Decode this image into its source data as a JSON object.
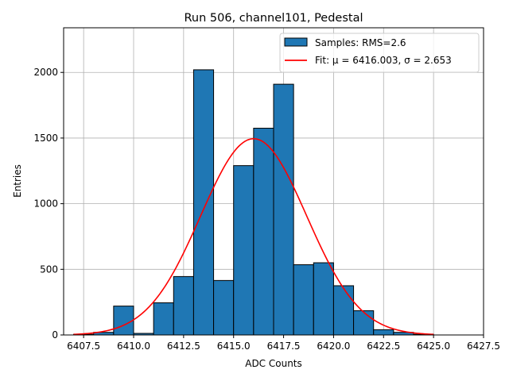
{
  "chart_data": {
    "type": "bar",
    "title": "Run 506, channel101, Pedestal",
    "xlabel": "ADC Counts",
    "ylabel": "Entries",
    "xlim": [
      6406.5,
      6427.5
    ],
    "ylim": [
      0,
      2340
    ],
    "grid": true,
    "legend_position": "top-right",
    "x_ticks": [
      6407.5,
      6410.0,
      6412.5,
      6415.0,
      6417.5,
      6420.0,
      6422.5,
      6425.0,
      6427.5
    ],
    "x_tick_labels": [
      "6407.5",
      "6410.0",
      "6412.5",
      "6415.0",
      "6417.5",
      "6420.0",
      "6422.5",
      "6425.0",
      "6427.5"
    ],
    "y_ticks": [
      0,
      500,
      1000,
      1500,
      2000
    ],
    "y_tick_labels": [
      "0",
      "500",
      "1000",
      "1500",
      "2000"
    ],
    "histogram": {
      "name": "Samples: RMS=2.6",
      "color": "#1f77b4",
      "edge_color": "#000000",
      "bin_edges": [
        6407.0,
        6408.0,
        6409.0,
        6410.0,
        6411.0,
        6412.0,
        6413.0,
        6414.0,
        6415.0,
        6416.0,
        6417.0,
        6418.0,
        6419.0,
        6420.0,
        6421.0,
        6422.0,
        6423.0,
        6424.0,
        6425.0
      ],
      "counts": [
        5,
        20,
        220,
        12,
        245,
        445,
        2020,
        415,
        1290,
        1575,
        1910,
        535,
        550,
        375,
        185,
        40,
        20,
        5
      ]
    },
    "fit": {
      "name": "Fit: $\\mu$ = 6416.003, $\\sigma$ = 2.653",
      "legend_label": "Fit: μ = 6416.003, σ = 2.653",
      "color": "#ff0000",
      "mu": 6416.003,
      "sigma": 2.653,
      "amplitude": 1495,
      "x_range": [
        6407.0,
        6425.0
      ]
    }
  }
}
